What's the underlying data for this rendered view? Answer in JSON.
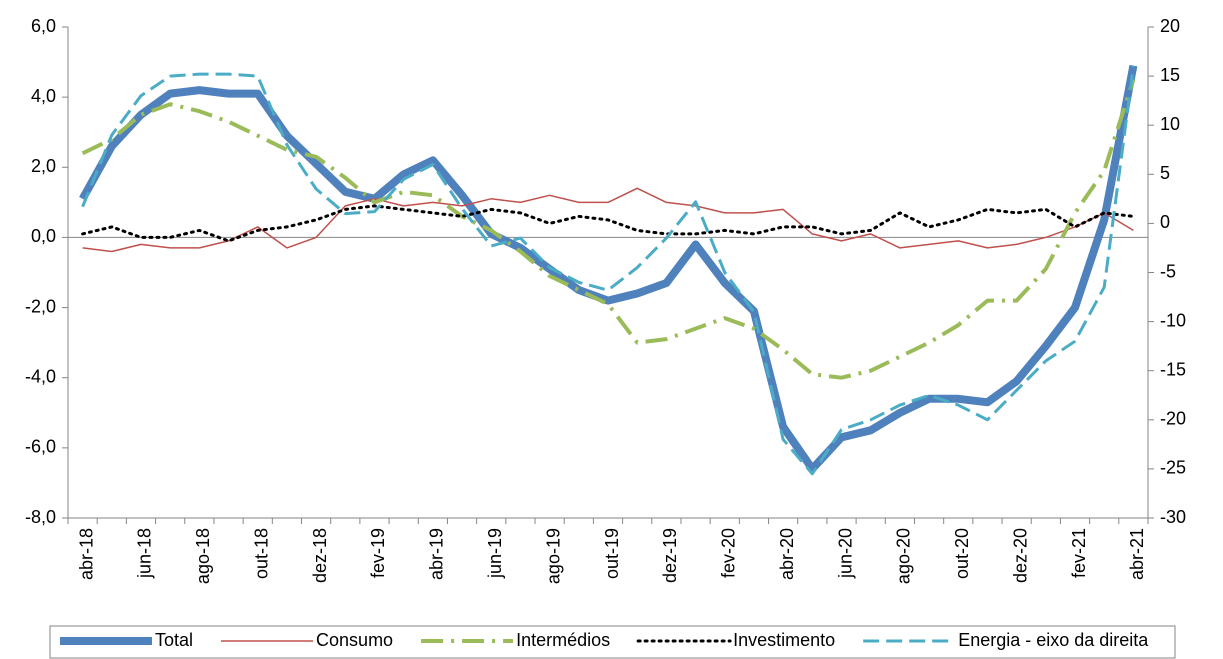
{
  "chart_data": {
    "type": "line",
    "categories": [
      "abr-18",
      null,
      "jun-18",
      null,
      "ago-18",
      null,
      "out-18",
      null,
      "dez-18",
      null,
      "fev-19",
      null,
      "abr-19",
      null,
      "jun-19",
      null,
      "ago-19",
      null,
      "out-19",
      null,
      "dez-19",
      null,
      "fev-20",
      null,
      "abr-20",
      null,
      "jun-20",
      null,
      "ago-20",
      null,
      "out-20",
      null,
      "dez-20",
      null,
      "fev-21",
      null,
      "abr-21"
    ],
    "ylim": [
      -8,
      6
    ],
    "yticks": [
      {
        "value": -8,
        "label": "-8,0"
      },
      {
        "value": -6,
        "label": "-6,0"
      },
      {
        "value": -4,
        "label": "-4,0"
      },
      {
        "value": -2,
        "label": "-2,0"
      },
      {
        "value": 0,
        "label": "0,0"
      },
      {
        "value": 2,
        "label": "2,0"
      },
      {
        "value": 4,
        "label": "4,0"
      },
      {
        "value": 6,
        "label": "6,0"
      }
    ],
    "y2lim": [
      -30,
      20
    ],
    "y2ticks": [
      -30,
      -25,
      -20,
      -15,
      -10,
      -5,
      0,
      5,
      10,
      15,
      20
    ],
    "legend": "bottom",
    "series": [
      {
        "name": "Total",
        "color": "#4f81bd",
        "values": [
          1.1,
          2.6,
          3.5,
          4.1,
          4.2,
          4.1,
          4.1,
          2.9,
          2.1,
          1.3,
          1.1,
          1.8,
          2.2,
          1.2,
          0.1,
          -0.3,
          -0.9,
          -1.5,
          -1.8,
          -1.6,
          -1.3,
          -0.2,
          -1.3,
          -2.1,
          -5.4,
          -6.6,
          -5.7,
          -5.5,
          -5.0,
          -4.6,
          -4.6,
          -4.7,
          -4.1,
          -3.1,
          -2.0,
          0.5,
          4.9
        ]
      },
      {
        "name": "Consumo",
        "color": "#c0504d",
        "values": [
          -0.3,
          -0.4,
          -0.2,
          -0.3,
          -0.3,
          -0.1,
          0.3,
          -0.3,
          0.0,
          0.9,
          1.1,
          0.9,
          1.0,
          0.9,
          1.1,
          1.0,
          1.2,
          1.0,
          1.0,
          1.4,
          1.0,
          0.9,
          0.7,
          0.7,
          0.8,
          0.1,
          -0.1,
          0.1,
          -0.3,
          -0.2,
          -0.1,
          -0.3,
          -0.2,
          0.0,
          0.3,
          0.7,
          0.2
        ]
      },
      {
        "name": "Intermédios",
        "color": "#9bbb59",
        "values": [
          2.4,
          2.8,
          3.5,
          3.8,
          3.6,
          3.3,
          2.9,
          2.5,
          2.3,
          1.7,
          1.0,
          1.3,
          1.2,
          0.6,
          0.2,
          -0.4,
          -1.1,
          -1.5,
          -1.9,
          -3.0,
          -2.9,
          -2.6,
          -2.3,
          -2.6,
          -3.2,
          -3.9,
          -4.0,
          -3.8,
          -3.4,
          -3.0,
          -2.5,
          -1.8,
          -1.8,
          -0.9,
          0.7,
          1.9,
          4.5
        ]
      },
      {
        "name": "Investimento",
        "color": "#000000",
        "values": [
          0.1,
          0.3,
          0.0,
          0.0,
          0.2,
          -0.1,
          0.2,
          0.3,
          0.5,
          0.8,
          0.9,
          0.8,
          0.7,
          0.6,
          0.8,
          0.7,
          0.4,
          0.6,
          0.5,
          0.2,
          0.1,
          0.1,
          0.2,
          0.1,
          0.3,
          0.3,
          0.1,
          0.2,
          0.7,
          0.3,
          0.5,
          0.8,
          0.7,
          0.8,
          0.3,
          0.7,
          0.6
        ]
      },
      {
        "name": "Energia - eixo da direita",
        "color": "#4bacc6",
        "axis": "y2",
        "values": [
          1.7,
          9,
          13,
          15,
          15.2,
          15.2,
          15,
          8,
          3.5,
          1,
          1.2,
          4.5,
          6,
          1.5,
          -2.3,
          -1.5,
          -4.5,
          -6,
          -6.8,
          -4.5,
          -1.5,
          2.2,
          -5,
          -9,
          -22,
          -25.5,
          -21,
          -20,
          -18.5,
          -17.5,
          -18.5,
          -20,
          -17,
          -14,
          -12,
          -6.5,
          16
        ]
      }
    ]
  }
}
